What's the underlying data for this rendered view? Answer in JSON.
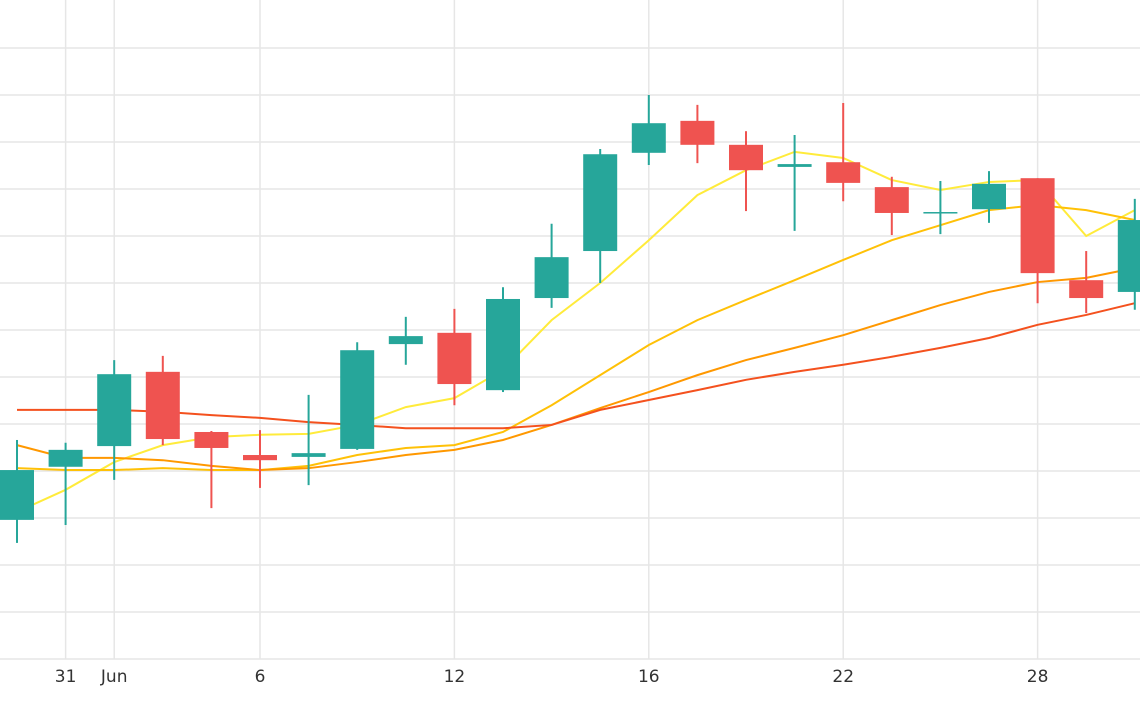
{
  "chart_data": {
    "type": "candlestick",
    "categories": [
      null,
      "31",
      "Jun",
      null,
      null,
      "6",
      null,
      null,
      null,
      "12",
      null,
      null,
      null,
      "16",
      null,
      null,
      null,
      "22",
      null,
      null,
      null,
      "28",
      null,
      null
    ],
    "open": [
      2.96,
      4.09,
      4.53,
      6.11,
      4.83,
      4.34,
      4.3,
      4.47,
      6.7,
      6.94,
      5.72,
      7.68,
      8.68,
      10.77,
      11.45,
      10.94,
      10.47,
      10.57,
      10.04,
      9.49,
      9.57,
      10.23,
      8.06,
      7.81
    ],
    "high": [
      4.66,
      4.6,
      6.36,
      6.45,
      4.85,
      4.87,
      5.62,
      6.74,
      7.28,
      7.45,
      7.91,
      9.26,
      10.85,
      12.0,
      11.79,
      11.23,
      11.15,
      11.83,
      10.26,
      10.17,
      10.38,
      10.23,
      8.68,
      9.79
    ],
    "low": [
      2.47,
      2.85,
      3.81,
      4.55,
      3.21,
      3.64,
      3.7,
      4.45,
      6.26,
      5.4,
      5.68,
      7.47,
      8.0,
      10.51,
      10.55,
      9.53,
      9.11,
      9.74,
      9.02,
      9.04,
      9.28,
      7.57,
      7.36,
      7.43
    ],
    "close": [
      4.02,
      4.45,
      6.06,
      4.68,
      4.49,
      4.23,
      4.38,
      6.57,
      6.87,
      5.85,
      7.66,
      8.55,
      10.74,
      11.4,
      10.94,
      10.4,
      10.53,
      10.13,
      9.49,
      9.51,
      10.11,
      8.21,
      7.68,
      9.34
    ],
    "up_color": "#26a69a",
    "down_color": "#ef5350",
    "lines": [
      {
        "color": "#ffeb3b",
        "values": [
          3.13,
          3.6,
          4.19,
          4.55,
          4.72,
          4.77,
          4.79,
          4.98,
          5.36,
          5.55,
          6.15,
          7.21,
          8.0,
          8.91,
          9.87,
          10.4,
          10.79,
          10.66,
          10.19,
          9.98,
          10.15,
          10.19,
          9.0,
          9.55
        ]
      },
      {
        "color": "#ffc107",
        "values": [
          4.06,
          4.02,
          4.02,
          4.06,
          4.02,
          4.02,
          4.11,
          4.34,
          4.49,
          4.55,
          4.83,
          5.4,
          6.04,
          6.68,
          7.21,
          7.64,
          8.06,
          8.49,
          8.91,
          9.23,
          9.55,
          9.66,
          9.55,
          9.34
        ]
      },
      {
        "color": "#ff9800",
        "values": [
          4.55,
          4.28,
          4.28,
          4.23,
          4.11,
          4.02,
          4.06,
          4.19,
          4.34,
          4.45,
          4.66,
          4.98,
          5.34,
          5.68,
          6.04,
          6.36,
          6.62,
          6.89,
          7.21,
          7.53,
          7.81,
          8.02,
          8.11,
          8.32
        ]
      },
      {
        "color": "#f4511e",
        "values": [
          5.3,
          5.3,
          5.3,
          5.26,
          5.19,
          5.13,
          5.04,
          4.98,
          4.91,
          4.91,
          4.91,
          4.98,
          5.3,
          5.51,
          5.72,
          5.94,
          6.11,
          6.26,
          6.43,
          6.62,
          6.83,
          7.11,
          7.32,
          7.57
        ]
      }
    ],
    "ylim": [
      0,
      14
    ],
    "yticks": [
      0,
      1,
      2,
      3,
      4,
      5,
      6,
      7,
      8,
      9,
      10,
      11,
      12,
      13
    ],
    "grid": true
  }
}
